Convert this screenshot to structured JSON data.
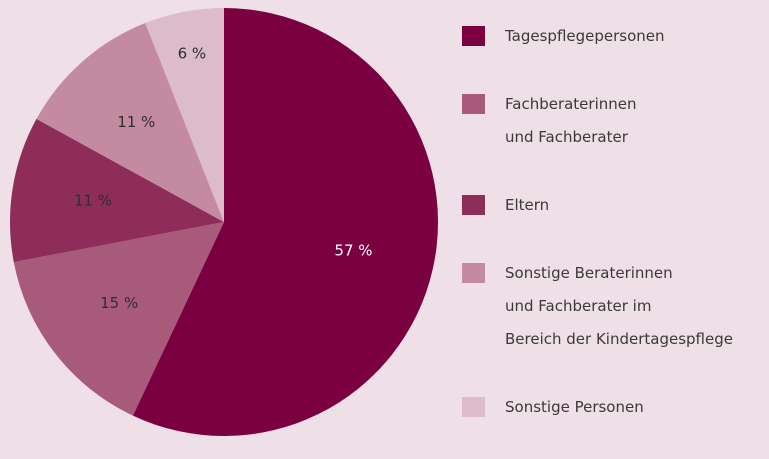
{
  "chart_data": {
    "type": "pie",
    "categories": [
      "Tagespflegepersonen",
      "Fachberaterinnen\nund Fachberater",
      "Eltern",
      "Sonstige Beraterinnen\nund Fachberater im\nBereich der Kindertagespflege",
      "Sonstige Personen"
    ],
    "values": [
      57,
      15,
      11,
      11,
      6
    ],
    "value_labels": [
      "57 %",
      "15 %",
      "11 %",
      "11 %",
      "6 %"
    ],
    "colors": [
      "#7a0040",
      "#a85a7a",
      "#8f2d5a",
      "#c48aa0",
      "#dcbccb"
    ],
    "legend": "right"
  }
}
